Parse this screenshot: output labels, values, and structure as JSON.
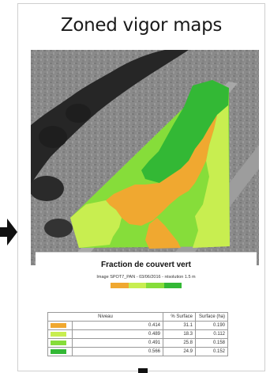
{
  "title": "Zoned vigor maps",
  "legend": {
    "heading": "Fraction de couvert vert",
    "subtitle": "Image SPOT7_PAN - 03/06/2016 - résolution 1.5 m",
    "ramp_colors": [
      "#f0a830",
      "#c8ee50",
      "#86dd3a",
      "#33b835"
    ]
  },
  "table": {
    "headers": [
      "Niveau",
      "% Surface",
      "Surface (ha)"
    ],
    "rows": [
      {
        "color": "#f0a830",
        "niveau": "0.414",
        "pct": "31.1",
        "surface": "0.190"
      },
      {
        "color": "#c8ee50",
        "niveau": "0.489",
        "pct": "18.3",
        "surface": "0.112"
      },
      {
        "color": "#86dd3a",
        "niveau": "0.491",
        "pct": "25.8",
        "surface": "0.158"
      },
      {
        "color": "#33b835",
        "niveau": "0.566",
        "pct": "24.9",
        "surface": "0.152"
      }
    ]
  }
}
